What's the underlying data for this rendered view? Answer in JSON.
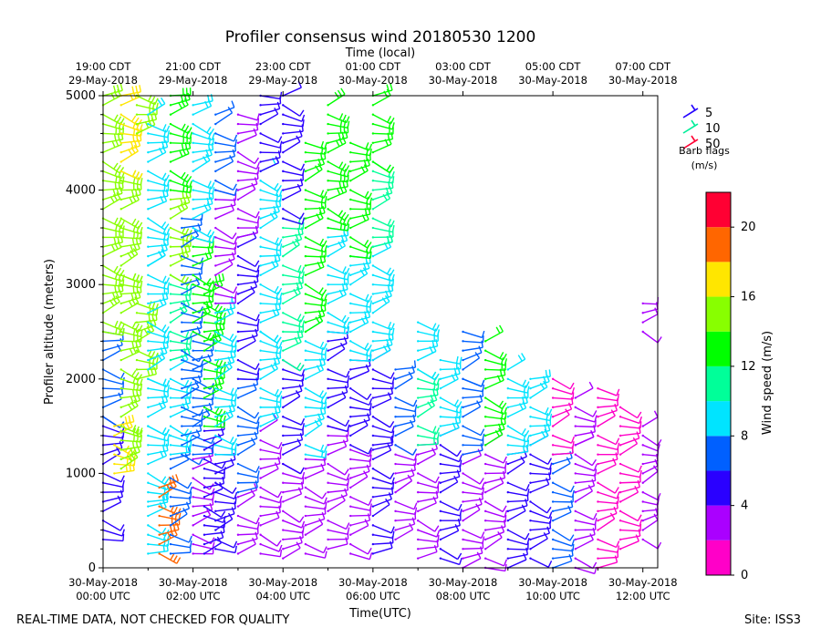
{
  "chart_data": {
    "type": "wind-barb profile (time–height)",
    "title": "Profiler consensus wind 20180530 1200",
    "xlabel_bottom": "Time(UTC)",
    "xlabel_top": "Time (local)",
    "ylabel": "Profiler altitude (meters)",
    "ylim": [
      0,
      5000
    ],
    "xlim_hours_utc": [
      0,
      12.33
    ],
    "y_ticks": [
      0,
      1000,
      2000,
      3000,
      4000,
      5000
    ],
    "bottom_ticks": [
      {
        "hour": 0,
        "line1": "30-May-2018",
        "line2": "00:00 UTC"
      },
      {
        "hour": 2,
        "line1": "30-May-2018",
        "line2": "02:00 UTC"
      },
      {
        "hour": 4,
        "line1": "30-May-2018",
        "line2": "04:00 UTC"
      },
      {
        "hour": 6,
        "line1": "30-May-2018",
        "line2": "06:00 UTC"
      },
      {
        "hour": 8,
        "line1": "30-May-2018",
        "line2": "08:00 UTC"
      },
      {
        "hour": 10,
        "line1": "30-May-2018",
        "line2": "10:00 UTC"
      },
      {
        "hour": 12,
        "line1": "30-May-2018",
        "line2": "12:00 UTC"
      }
    ],
    "top_ticks": [
      {
        "hour": 0,
        "line1": "19:00 CDT",
        "line2": "29-May-2018"
      },
      {
        "hour": 2,
        "line1": "21:00 CDT",
        "line2": "29-May-2018"
      },
      {
        "hour": 4,
        "line1": "23:00 CDT",
        "line2": "29-May-2018"
      },
      {
        "hour": 6,
        "line1": "01:00 CDT",
        "line2": "30-May-2018"
      },
      {
        "hour": 8,
        "line1": "03:00 CDT",
        "line2": "30-May-2018"
      },
      {
        "hour": 10,
        "line1": "05:00 CDT",
        "line2": "30-May-2018"
      },
      {
        "hour": 12,
        "line1": "07:00 CDT",
        "line2": "30-May-2018"
      }
    ],
    "legend": {
      "items": [
        {
          "label": "5",
          "color": "#2200ff"
        },
        {
          "label": "10",
          "color": "#00ee99"
        },
        {
          "label": "50",
          "color": "#ff0033"
        }
      ],
      "title_line1": "Barb flags",
      "title_line2": "(m/s)",
      "placement": "top-right"
    },
    "colorbar": {
      "label": "Wind speed (m/s)",
      "min": 0,
      "max": 22,
      "bins": [
        {
          "from": 0,
          "to": 2,
          "color": "#ff00c8"
        },
        {
          "from": 2,
          "to": 4,
          "color": "#aa00ff"
        },
        {
          "from": 4,
          "to": 6,
          "color": "#2a00ff"
        },
        {
          "from": 6,
          "to": 8,
          "color": "#0060ff"
        },
        {
          "from": 8,
          "to": 10,
          "color": "#00e4ff"
        },
        {
          "from": 10,
          "to": 12,
          "color": "#00ff99"
        },
        {
          "from": 12,
          "to": 14,
          "color": "#00ff00"
        },
        {
          "from": 14,
          "to": 16,
          "color": "#88ff00"
        },
        {
          "from": 16,
          "to": 18,
          "color": "#ffe600"
        },
        {
          "from": 18,
          "to": 20,
          "color": "#ff6600"
        },
        {
          "from": 20,
          "to": 22,
          "color": "#ff0033"
        }
      ],
      "ticks": [
        0,
        4,
        8,
        12,
        16,
        20
      ]
    },
    "columns": [
      {
        "hour": 0.0,
        "from": 300,
        "to": 5000,
        "layers": [
          [
            300,
            1600,
            5
          ],
          [
            1600,
            2500,
            7
          ],
          [
            2500,
            5000,
            15
          ]
        ]
      },
      {
        "hour": 0.25,
        "from": 1000,
        "to": 1500,
        "layers": [
          [
            1000,
            1500,
            16
          ]
        ]
      },
      {
        "hour": 0.4,
        "from": 1050,
        "to": 5000,
        "layers": [
          [
            1050,
            1500,
            15
          ],
          [
            1500,
            3100,
            15
          ],
          [
            3100,
            4200,
            14
          ],
          [
            4200,
            5000,
            16
          ]
        ]
      },
      {
        "hour": 0.75,
        "from": 2000,
        "to": 5000,
        "layers": [
          [
            2000,
            2800,
            14
          ],
          [
            4600,
            5000,
            15
          ]
        ]
      },
      {
        "hour": 1.0,
        "from": 150,
        "to": 4800,
        "layers": [
          [
            150,
            700,
            8
          ],
          [
            700,
            1500,
            8
          ],
          [
            1500,
            2000,
            9
          ],
          [
            2000,
            3200,
            9
          ],
          [
            3200,
            4800,
            9
          ]
        ]
      },
      {
        "hour": 1.25,
        "from": 150,
        "to": 900,
        "layers": [
          [
            150,
            900,
            19
          ]
        ]
      },
      {
        "hour": 1.5,
        "from": 150,
        "to": 5000,
        "layers": [
          [
            150,
            1200,
            7
          ],
          [
            1200,
            2200,
            8
          ],
          [
            2200,
            3100,
            10
          ],
          [
            3100,
            4000,
            14
          ],
          [
            4000,
            5000,
            13
          ]
        ]
      },
      {
        "hour": 1.75,
        "from": 1200,
        "to": 3700,
        "layers": [
          [
            1200,
            2500,
            7
          ],
          [
            2500,
            3700,
            7
          ]
        ]
      },
      {
        "hour": 2.0,
        "from": 150,
        "to": 4900,
        "layers": [
          [
            150,
            1200,
            3
          ],
          [
            1200,
            2500,
            7
          ],
          [
            2500,
            3500,
            12
          ],
          [
            3500,
            4900,
            8
          ]
        ]
      },
      {
        "hour": 2.25,
        "from": 150,
        "to": 3000,
        "layers": [
          [
            150,
            1500,
            4
          ],
          [
            1500,
            3000,
            13
          ]
        ]
      },
      {
        "hour": 2.5,
        "from": 200,
        "to": 4800,
        "layers": [
          [
            200,
            1200,
            5
          ],
          [
            1200,
            2800,
            9
          ],
          [
            2800,
            4000,
            3
          ],
          [
            4000,
            4800,
            6
          ]
        ]
      },
      {
        "hour": 3.0,
        "from": 150,
        "to": 4800,
        "layers": [
          [
            150,
            800,
            2
          ],
          [
            800,
            2000,
            6
          ],
          [
            2000,
            3500,
            5
          ],
          [
            3500,
            4800,
            3
          ]
        ]
      },
      {
        "hour": 3.5,
        "from": 150,
        "to": 5000,
        "layers": [
          [
            150,
            1500,
            3
          ],
          [
            1500,
            2500,
            9
          ],
          [
            2500,
            4200,
            9
          ],
          [
            4200,
            5000,
            5
          ]
        ]
      },
      {
        "hour": 4.0,
        "from": 100,
        "to": 5000,
        "layers": [
          [
            100,
            1100,
            2
          ],
          [
            1100,
            2200,
            4
          ],
          [
            2200,
            3700,
            11
          ],
          [
            3700,
            5000,
            5
          ]
        ]
      },
      {
        "hour": 4.5,
        "from": 150,
        "to": 4500,
        "layers": [
          [
            150,
            1200,
            3
          ],
          [
            1200,
            2500,
            9
          ],
          [
            2500,
            4500,
            12
          ]
        ]
      },
      {
        "hour": 5.0,
        "from": 200,
        "to": 4900,
        "layers": [
          [
            200,
            1500,
            2
          ],
          [
            1500,
            2500,
            5
          ],
          [
            2500,
            3600,
            9
          ],
          [
            3600,
            4900,
            13
          ]
        ]
      },
      {
        "hour": 5.5,
        "from": 150,
        "to": 4500,
        "layers": [
          [
            150,
            1300,
            2
          ],
          [
            1300,
            2200,
            5
          ],
          [
            2200,
            3300,
            9
          ],
          [
            3300,
            4500,
            12
          ]
        ]
      },
      {
        "hour": 6.0,
        "from": 150,
        "to": 5000,
        "layers": [
          [
            150,
            1300,
            4
          ],
          [
            1300,
            2200,
            5
          ],
          [
            2200,
            3400,
            9
          ],
          [
            3400,
            4300,
            11
          ],
          [
            4300,
            5000,
            12
          ]
        ]
      },
      {
        "hour": 6.5,
        "from": 300,
        "to": 2100,
        "layers": [
          [
            300,
            1300,
            2
          ],
          [
            1300,
            2100,
            6
          ]
        ]
      },
      {
        "hour": 7.0,
        "from": 100,
        "to": 2600,
        "layers": [
          [
            100,
            1300,
            3
          ],
          [
            1300,
            2100,
            10
          ],
          [
            2100,
            2600,
            8
          ]
        ]
      },
      {
        "hour": 7.5,
        "from": 100,
        "to": 2200,
        "layers": [
          [
            100,
            1400,
            5
          ],
          [
            1400,
            2200,
            8
          ]
        ]
      },
      {
        "hour": 8.0,
        "from": 0,
        "to": 2500,
        "layers": [
          [
            0,
            1200,
            2
          ],
          [
            1200,
            2000,
            7
          ],
          [
            2000,
            2500,
            6
          ]
        ]
      },
      {
        "hour": 8.5,
        "from": 0,
        "to": 2400,
        "layers": [
          [
            0,
            1300,
            3
          ],
          [
            1300,
            2400,
            12
          ]
        ]
      },
      {
        "hour": 9.0,
        "from": 0,
        "to": 2100,
        "layers": [
          [
            0,
            1200,
            5
          ],
          [
            1200,
            2100,
            8
          ]
        ]
      },
      {
        "hour": 9.5,
        "from": 100,
        "to": 2000,
        "layers": [
          [
            100,
            1300,
            4
          ],
          [
            1300,
            2000,
            9
          ]
        ]
      },
      {
        "hour": 10.0,
        "from": 0,
        "to": 2000,
        "layers": [
          [
            0,
            1200,
            6
          ],
          [
            1200,
            2000,
            1
          ]
        ]
      },
      {
        "hour": 10.5,
        "from": 0,
        "to": 1800,
        "layers": [
          [
            0,
            1300,
            3
          ],
          [
            1300,
            1800,
            3
          ]
        ]
      },
      {
        "hour": 11.0,
        "from": 0,
        "to": 1900,
        "layers": [
          [
            0,
            1900,
            1
          ]
        ]
      },
      {
        "hour": 11.5,
        "from": 200,
        "to": 1700,
        "layers": [
          [
            200,
            1700,
            1
          ]
        ]
      },
      {
        "hour": 12.0,
        "from": 300,
        "to": 2800,
        "layers": [
          [
            300,
            1500,
            2
          ],
          [
            2500,
            2800,
            2
          ]
        ]
      }
    ]
  },
  "footer": {
    "disclaimer": "REAL-TIME DATA, NOT CHECKED FOR QUALITY",
    "site": "Site: ISS3"
  }
}
